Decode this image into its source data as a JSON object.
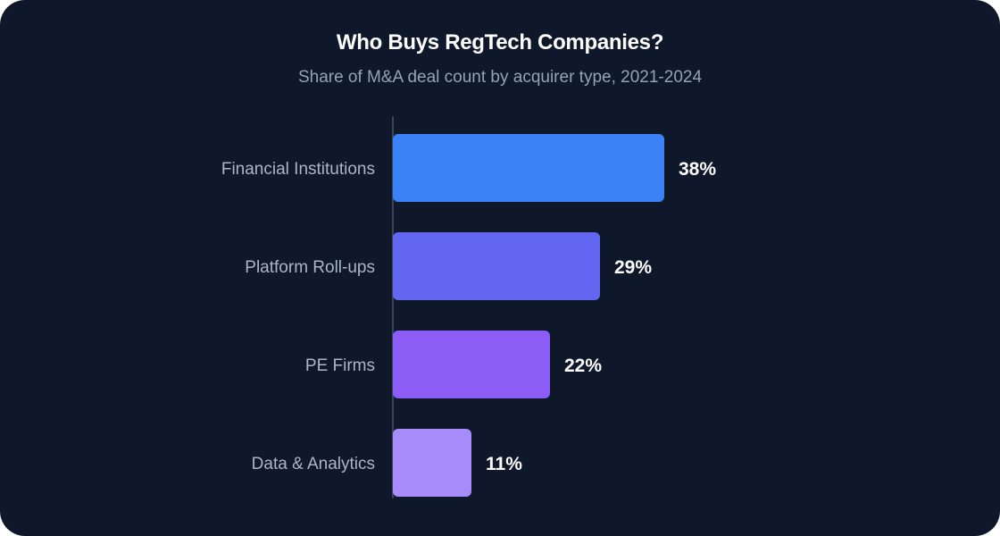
{
  "chart_data": {
    "type": "bar",
    "orientation": "horizontal",
    "title": "Who Buys RegTech Companies?",
    "subtitle": "Share of M&A deal count by acquirer type, 2021-2024",
    "categories": [
      "Financial Institutions",
      "Platform Roll-ups",
      "PE Firms",
      "Data & Analytics"
    ],
    "values": [
      38,
      29,
      22,
      11
    ],
    "value_labels": [
      "38%",
      "29%",
      "22%",
      "11%"
    ],
    "bar_colors": [
      "#3b82f6",
      "#6366f1",
      "#8b5cf6",
      "#a78bfa"
    ],
    "xlim": [
      0,
      38
    ],
    "grid": false,
    "legend": "none"
  },
  "colors": {
    "background": "#0f172a",
    "axis_line": "#475569",
    "category_text": "#aab6c8",
    "value_text": "#ffffff"
  }
}
